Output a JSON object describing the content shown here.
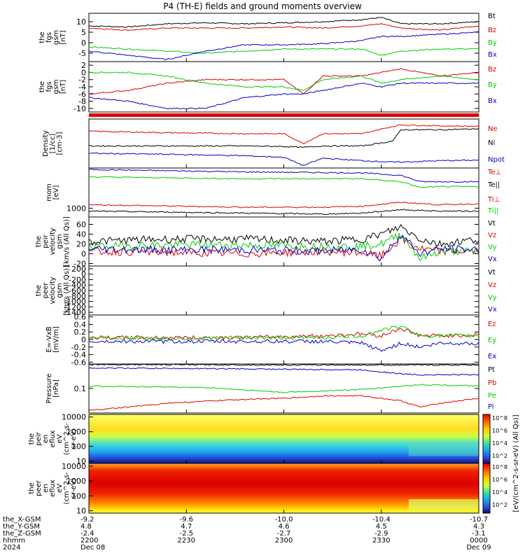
{
  "title": "P4 (TH-E) fields and ground moments overview",
  "time_axis": {
    "ticks": [
      {
        "X": "-9.2",
        "Y": "4.8",
        "Z": "-2.4",
        "hhmm": "2200",
        "date": "Dec 08"
      },
      {
        "X": "-9.6",
        "Y": "4.7",
        "Z": "-2.5",
        "hhmm": "2230",
        "date": ""
      },
      {
        "X": "-10.0",
        "Y": "4.6",
        "Z": "-2.7",
        "hhmm": "2300",
        "date": ""
      },
      {
        "X": "-10.4",
        "Y": "4.5",
        "Z": "-2.9",
        "hhmm": "2330",
        "date": ""
      },
      {
        "X": "-10.7",
        "Y": "4.3",
        "Z": "-3.1",
        "hhmm": "0000",
        "date": "Dec 09"
      }
    ],
    "row_labels": [
      "the_X-GSM",
      "the_Y-GSM",
      "the_Z-GSM",
      "hhmm",
      "2024"
    ]
  },
  "colors": {
    "black": "#000000",
    "red": "#dd0000",
    "green": "#00cc00",
    "blue": "#0000cc"
  },
  "chart_data": [
    {
      "type": "line",
      "ylabel": [
        "the",
        "fgs",
        "gsm",
        "[nT]"
      ],
      "ylim": [
        -9,
        14
      ],
      "yticks": [
        10,
        5,
        0,
        -5
      ],
      "legend": [
        "Bt",
        "Bz",
        "By",
        "Bx"
      ],
      "series": [
        {
          "name": "Bt",
          "color": "black",
          "x": [
            0,
            0.1,
            0.2,
            0.3,
            0.4,
            0.5,
            0.6,
            0.7,
            0.75,
            0.8,
            0.9,
            1
          ],
          "values": [
            8,
            7.5,
            9,
            9.5,
            9,
            9.5,
            10,
            11,
            12,
            9,
            9,
            10
          ]
        },
        {
          "name": "Bz",
          "color": "red",
          "x": [
            0,
            0.1,
            0.2,
            0.3,
            0.4,
            0.5,
            0.6,
            0.7,
            0.75,
            0.8,
            0.9,
            1
          ],
          "values": [
            7,
            6,
            7,
            7,
            7,
            7.5,
            7,
            8,
            9,
            7,
            6,
            8
          ]
        },
        {
          "name": "By",
          "color": "green",
          "x": [
            0,
            0.1,
            0.2,
            0.3,
            0.4,
            0.5,
            0.6,
            0.7,
            0.75,
            0.8,
            0.9,
            1
          ],
          "values": [
            -2,
            -3,
            -4,
            -5,
            -4,
            -3,
            -3,
            -3,
            -6,
            -4,
            -3,
            -3
          ]
        },
        {
          "name": "Bx",
          "color": "blue",
          "x": [
            0,
            0.1,
            0.2,
            0.3,
            0.4,
            0.5,
            0.6,
            0.7,
            0.75,
            0.8,
            0.9,
            1
          ],
          "values": [
            -4,
            -6,
            -8,
            -4,
            -1,
            -1,
            -0.5,
            1,
            3,
            3,
            4,
            5
          ]
        }
      ]
    },
    {
      "type": "line",
      "ylabel": [
        "the",
        "fgs",
        "gsm",
        "[nT]"
      ],
      "ylim": [
        -11,
        3
      ],
      "yticks": [
        2,
        0,
        -2,
        -4,
        -6,
        -8,
        -10
      ],
      "legend": [
        "Bz",
        "By",
        "Bx"
      ],
      "series": [
        {
          "name": "Bz",
          "color": "red",
          "x": [
            0,
            0.1,
            0.2,
            0.3,
            0.4,
            0.5,
            0.55,
            0.6,
            0.7,
            0.75,
            0.8,
            0.9,
            1
          ],
          "values": [
            -6,
            -5,
            -3,
            -2,
            -2,
            -2,
            -6,
            -1,
            -1,
            0,
            1,
            -1,
            0
          ]
        },
        {
          "name": "By",
          "color": "green",
          "x": [
            0,
            0.1,
            0.2,
            0.3,
            0.4,
            0.5,
            0.55,
            0.6,
            0.7,
            0.75,
            0.8,
            0.9,
            1
          ],
          "values": [
            0,
            0,
            -1,
            -3,
            -4,
            -4,
            -5,
            -2,
            -1,
            -3,
            -2,
            -1,
            -2
          ]
        },
        {
          "name": "Bx",
          "color": "blue",
          "x": [
            0,
            0.1,
            0.2,
            0.3,
            0.4,
            0.5,
            0.55,
            0.6,
            0.7,
            0.75,
            0.8,
            0.9,
            1
          ],
          "values": [
            -7,
            -8,
            -10,
            -10,
            -7,
            -6,
            -6,
            -5,
            -3,
            -4,
            -3,
            -3,
            -3
          ]
        }
      ]
    },
    {
      "type": "line",
      "ylabel": [
        "Density",
        "[1/cc]",
        "[cm-3]"
      ],
      "ylim": [
        0,
        1
      ],
      "yticks": [],
      "legend": [
        "Ne",
        "Ni",
        "Npot"
      ],
      "series": [
        {
          "name": "Ne",
          "color": "red",
          "x": [
            0,
            0.2,
            0.4,
            0.5,
            0.55,
            0.6,
            0.7,
            0.78,
            0.8,
            0.9,
            1
          ],
          "values": [
            0.75,
            0.72,
            0.7,
            0.7,
            0.5,
            0.7,
            0.7,
            0.85,
            0.88,
            0.86,
            0.85
          ]
        },
        {
          "name": "Ni",
          "color": "black",
          "x": [
            0,
            0.2,
            0.4,
            0.5,
            0.55,
            0.6,
            0.7,
            0.78,
            0.8,
            0.9,
            1
          ],
          "values": [
            0.45,
            0.45,
            0.45,
            0.44,
            0.42,
            0.45,
            0.45,
            0.55,
            0.78,
            0.78,
            0.8
          ]
        },
        {
          "name": "Npot",
          "color": "blue",
          "x": [
            0,
            0.2,
            0.4,
            0.5,
            0.55,
            0.6,
            0.7,
            0.78,
            0.8,
            0.9,
            1
          ],
          "values": [
            0.3,
            0.28,
            0.25,
            0.22,
            0.05,
            0.2,
            0.15,
            0.12,
            0.12,
            0.15,
            0.16
          ]
        }
      ]
    },
    {
      "type": "line",
      "ylabel": [
        "mom",
        "[eV]"
      ],
      "ylim": [
        0,
        1
      ],
      "yticks": [
        "1000"
      ],
      "legend": [
        "Te⊥",
        "Te||",
        "Ti⊥",
        "Ti||"
      ],
      "series": [
        {
          "name": "Te⊥",
          "color": "blue",
          "x": [
            0,
            0.4,
            0.7,
            0.8,
            0.85,
            0.9,
            1
          ],
          "values": [
            0.97,
            0.92,
            0.9,
            0.85,
            0.72,
            0.72,
            0.72
          ]
        },
        {
          "name": "Te||",
          "color": "green",
          "x": [
            0,
            0.4,
            0.7,
            0.8,
            0.85,
            0.9,
            1
          ],
          "values": [
            0.82,
            0.78,
            0.78,
            0.72,
            0.6,
            0.62,
            0.62
          ]
        },
        {
          "name": "Ti⊥",
          "color": "red",
          "x": [
            0,
            0.4,
            0.6,
            0.7,
            0.8,
            0.9,
            1
          ],
          "values": [
            0.25,
            0.2,
            0.2,
            0.22,
            0.3,
            0.25,
            0.27
          ]
        },
        {
          "name": "Ti||",
          "color": "black",
          "x": [
            0,
            0.4,
            0.6,
            0.7,
            0.8,
            0.9,
            1
          ],
          "values": [
            0.12,
            0.08,
            0.06,
            0.08,
            0.15,
            0.12,
            0.12
          ]
        }
      ]
    },
    {
      "type": "line",
      "ylabel": [
        "the",
        "peir",
        "velocity",
        "gsm",
        "[km/s (All Qs)]"
      ],
      "ylim": [
        -25,
        75
      ],
      "yticks": [
        60,
        40,
        20,
        0,
        -20
      ],
      "legend": [
        "Vt",
        "Vz",
        "Vy",
        "Vx"
      ],
      "series": [
        {
          "name": "Vt",
          "color": "black",
          "x": [
            0,
            0.2,
            0.4,
            0.6,
            0.7,
            0.75,
            0.8,
            0.85,
            0.9,
            1
          ],
          "values": [
            25,
            30,
            30,
            25,
            30,
            40,
            55,
            30,
            20,
            30
          ]
        },
        {
          "name": "Vz",
          "color": "red",
          "x": [
            0,
            0.2,
            0.4,
            0.6,
            0.7,
            0.75,
            0.8,
            0.85,
            0.9,
            1
          ],
          "values": [
            5,
            3,
            0,
            5,
            2,
            -5,
            30,
            10,
            5,
            5
          ]
        },
        {
          "name": "Vy",
          "color": "green",
          "x": [
            0,
            0.2,
            0.4,
            0.6,
            0.7,
            0.75,
            0.8,
            0.85,
            0.9,
            1
          ],
          "values": [
            15,
            18,
            18,
            15,
            15,
            20,
            40,
            -10,
            5,
            5
          ]
        },
        {
          "name": "Vx",
          "color": "blue",
          "x": [
            0,
            0.2,
            0.4,
            0.6,
            0.7,
            0.75,
            0.8,
            0.85,
            0.9,
            1
          ],
          "values": [
            10,
            8,
            8,
            5,
            10,
            -10,
            40,
            0,
            10,
            8
          ]
        }
      ]
    },
    {
      "type": "line",
      "ylabel": [
        "the",
        "peer",
        "velocity",
        "gsm",
        "[km/s (All Qs)]"
      ],
      "ylim": [
        -1500,
        300
      ],
      "yticks": [
        200,
        0,
        -200,
        -400,
        -600,
        -800,
        -1000,
        -1200,
        -1400
      ],
      "legend": [
        "Vt",
        "Vz",
        "Vy",
        "Vx"
      ],
      "series": []
    },
    {
      "type": "line",
      "ylabel": [
        "E=-VxB",
        "[mV/m]"
      ],
      "ylim": [
        -0.65,
        0.65
      ],
      "yticks": [
        0.6,
        0.4,
        0.2,
        0.0,
        -0.2,
        -0.4,
        -0.6
      ],
      "legend": [
        "Ez",
        "Ey",
        "Ex"
      ],
      "series": [
        {
          "name": "Ez",
          "color": "red",
          "x": [
            0,
            0.2,
            0.4,
            0.6,
            0.7,
            0.75,
            0.8,
            0.85,
            0.9,
            1
          ],
          "values": [
            0.05,
            0.05,
            0.05,
            0.1,
            0.15,
            0.1,
            0.3,
            0.1,
            0.1,
            0.12
          ]
        },
        {
          "name": "Ey",
          "color": "green",
          "x": [
            0,
            0.2,
            0.4,
            0.6,
            0.7,
            0.75,
            0.8,
            0.85,
            0.9,
            1
          ],
          "values": [
            0.05,
            0.03,
            0.05,
            0.05,
            0.1,
            0.25,
            0.35,
            0.1,
            0.1,
            0.1
          ]
        },
        {
          "name": "Ex",
          "color": "blue",
          "x": [
            0,
            0.2,
            0.4,
            0.6,
            0.7,
            0.75,
            0.8,
            0.85,
            0.9,
            1
          ],
          "values": [
            -0.05,
            -0.05,
            -0.05,
            -0.05,
            -0.1,
            -0.3,
            -0.1,
            -0.2,
            -0.1,
            -0.1
          ]
        }
      ]
    },
    {
      "type": "line",
      "ylabel": [
        "Pressure",
        "[nPa]"
      ],
      "ylim": [
        0,
        1
      ],
      "yticks": [
        "0.1"
      ],
      "legend": [
        "Pt",
        "Pb",
        "Pe",
        "Pi"
      ],
      "series": [
        {
          "name": "Pt",
          "color": "black",
          "x": [
            0,
            0.5,
            1
          ],
          "values": [
            0.99,
            0.98,
            0.98
          ]
        },
        {
          "name": "Pi",
          "color": "blue",
          "x": [
            0,
            0.4,
            0.7,
            0.8,
            0.85,
            1
          ],
          "values": [
            0.92,
            0.9,
            0.88,
            0.8,
            0.78,
            0.78
          ]
        },
        {
          "name": "Pe",
          "color": "green",
          "x": [
            0,
            0.3,
            0.5,
            0.7,
            0.85,
            1
          ],
          "values": [
            0.55,
            0.52,
            0.42,
            0.48,
            0.58,
            0.55
          ]
        },
        {
          "name": "Pb",
          "color": "red",
          "x": [
            0,
            0.1,
            0.2,
            0.4,
            0.5,
            0.6,
            0.7,
            0.8,
            0.85,
            0.9,
            1
          ],
          "values": [
            0.05,
            0.12,
            0.2,
            0.28,
            0.3,
            0.35,
            0.35,
            0.25,
            0.12,
            0.2,
            0.3
          ]
        }
      ]
    },
    {
      "type": "heatmap",
      "ylabel": [
        "the",
        "peir",
        "en",
        "eflux",
        "eV",
        "(cm^2-s-",
        "sr-eV)"
      ],
      "yscale": "log",
      "ylim": [
        7,
        15000
      ],
      "yticks": [
        "10000",
        "1000",
        "100",
        "10"
      ]
    },
    {
      "type": "heatmap",
      "ylabel": [
        "the",
        "peer",
        "en",
        "eflux",
        "eV",
        "(cm^2-s-",
        "sr-eV)"
      ],
      "yscale": "log",
      "ylim": [
        7,
        15000
      ],
      "yticks": [
        "10000",
        "1000",
        "100",
        "10"
      ]
    }
  ],
  "colorbar": {
    "label": "[eV/(cm^2-s-sr-eV) (All Qs)]",
    "ticks_upper": [
      "10^8",
      "10^6",
      "10^4",
      "10^2"
    ],
    "ticks_lower": [
      "10^8",
      "10^6",
      "10^4",
      "10^2"
    ]
  }
}
